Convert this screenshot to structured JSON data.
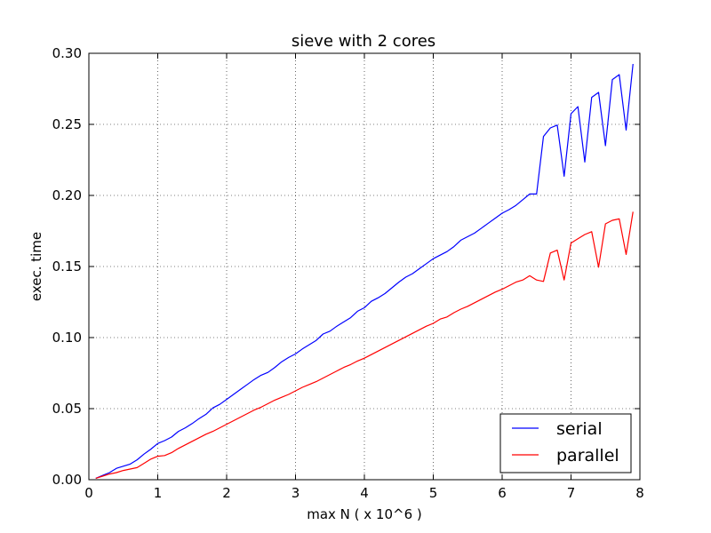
{
  "chart_data": {
    "type": "line",
    "title": "sieve with 2 cores",
    "xlabel": "max N ( x 10^6 )",
    "ylabel": "exec. time",
    "xlim": [
      0,
      8
    ],
    "ylim": [
      0,
      0.3
    ],
    "xticks": [
      "0",
      "1",
      "2",
      "3",
      "4",
      "5",
      "6",
      "7",
      "8"
    ],
    "yticks": [
      "0.00",
      "0.05",
      "0.10",
      "0.15",
      "0.20",
      "0.25",
      "0.30"
    ],
    "grid": true,
    "legend_position": "bottom-right",
    "x": [
      0.1,
      0.2,
      0.3,
      0.4,
      0.5,
      0.6,
      0.7,
      0.8,
      0.9,
      1.0,
      1.1,
      1.2,
      1.3,
      1.4,
      1.5,
      1.6,
      1.7,
      1.8,
      1.9,
      2.0,
      2.1,
      2.2,
      2.3,
      2.4,
      2.5,
      2.6,
      2.7,
      2.8,
      2.9,
      3.0,
      3.1,
      3.2,
      3.3,
      3.4,
      3.5,
      3.6,
      3.7,
      3.8,
      3.9,
      4.0,
      4.1,
      4.2,
      4.3,
      4.4,
      4.5,
      4.6,
      4.7,
      4.8,
      4.9,
      5.0,
      5.1,
      5.2,
      5.3,
      5.4,
      5.5,
      5.6,
      5.7,
      5.8,
      5.9,
      6.0,
      6.1,
      6.2,
      6.3,
      6.4,
      6.5,
      6.6,
      6.7,
      6.8,
      6.9,
      7.0,
      7.1,
      7.2,
      7.3,
      7.4,
      7.5,
      7.6,
      7.7,
      7.8,
      7.9
    ],
    "series": [
      {
        "name": "serial",
        "color": "#0000ff",
        "values": [
          0.001,
          0.003,
          0.005,
          0.008,
          0.0095,
          0.011,
          0.014,
          0.018,
          0.0215,
          0.0255,
          0.0275,
          0.03,
          0.034,
          0.0365,
          0.0395,
          0.043,
          0.046,
          0.0505,
          0.053,
          0.0565,
          0.06,
          0.0635,
          0.067,
          0.0705,
          0.0735,
          0.0755,
          0.079,
          0.083,
          0.086,
          0.0885,
          0.092,
          0.095,
          0.098,
          0.1025,
          0.1045,
          0.108,
          0.111,
          0.114,
          0.1185,
          0.121,
          0.1255,
          0.128,
          0.131,
          0.135,
          0.139,
          0.1425,
          0.145,
          0.1485,
          0.152,
          0.1555,
          0.158,
          0.1605,
          0.164,
          0.1685,
          0.171,
          0.1735,
          0.177,
          0.1805,
          0.184,
          0.1875,
          0.19,
          0.193,
          0.197,
          0.201,
          0.201,
          0.2415,
          0.2475,
          0.2495,
          0.2135,
          0.2575,
          0.2625,
          0.2235,
          0.269,
          0.2725,
          0.235,
          0.2815,
          0.285,
          0.246,
          0.2925
        ]
      },
      {
        "name": "parallel",
        "color": "#ff0000",
        "values": [
          0.001,
          0.0025,
          0.004,
          0.005,
          0.0065,
          0.0075,
          0.0085,
          0.0115,
          0.0145,
          0.0165,
          0.017,
          0.019,
          0.022,
          0.0245,
          0.027,
          0.0295,
          0.032,
          0.034,
          0.0365,
          0.039,
          0.0415,
          0.044,
          0.0465,
          0.049,
          0.051,
          0.0535,
          0.056,
          0.058,
          0.06,
          0.0625,
          0.065,
          0.067,
          0.069,
          0.0715,
          0.074,
          0.0765,
          0.079,
          0.081,
          0.0835,
          0.0855,
          0.088,
          0.0905,
          0.093,
          0.0955,
          0.098,
          0.1005,
          0.103,
          0.1055,
          0.108,
          0.11,
          0.113,
          0.1145,
          0.1175,
          0.12,
          0.122,
          0.1245,
          0.127,
          0.1295,
          0.132,
          0.134,
          0.1365,
          0.139,
          0.1405,
          0.1435,
          0.1405,
          0.1395,
          0.1595,
          0.1615,
          0.1405,
          0.1665,
          0.1695,
          0.1725,
          0.1745,
          0.1495,
          0.18,
          0.1825,
          0.1835,
          0.1585,
          0.1885
        ]
      }
    ]
  }
}
